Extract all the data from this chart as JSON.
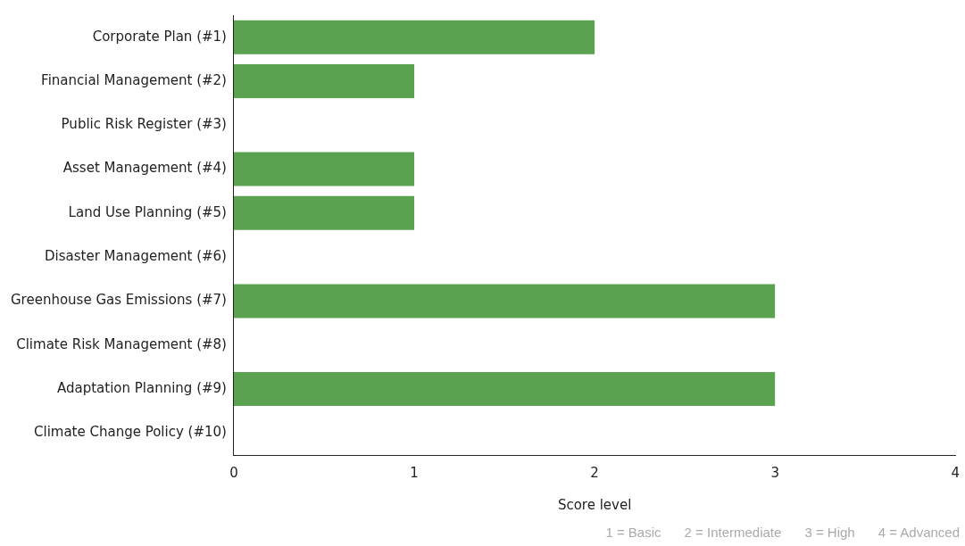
{
  "chart_data": {
    "type": "bar",
    "orientation": "horizontal",
    "xlabel": "Score level",
    "categories": [
      "Corporate Plan (#1)",
      "Financial Management (#2)",
      "Public Risk Register (#3)",
      "Asset Management (#4)",
      "Land Use Planning (#5)",
      "Disaster Management (#6)",
      "Greenhouse Gas Emissions (#7)",
      "Climate Risk Management (#8)",
      "Adaptation Planning (#9)",
      "Climate Change Policy (#10)"
    ],
    "values": [
      2,
      1,
      0,
      1,
      1,
      0,
      3,
      0,
      3,
      0
    ],
    "color": "#5aa150",
    "xlim": [
      0,
      4
    ],
    "xticks": [
      0,
      1,
      2,
      3,
      4
    ],
    "grid": false,
    "legend": false,
    "annotations": [
      "1 = Basic",
      "2 = Intermediate",
      "3 = High",
      "4 = Advanced"
    ]
  }
}
